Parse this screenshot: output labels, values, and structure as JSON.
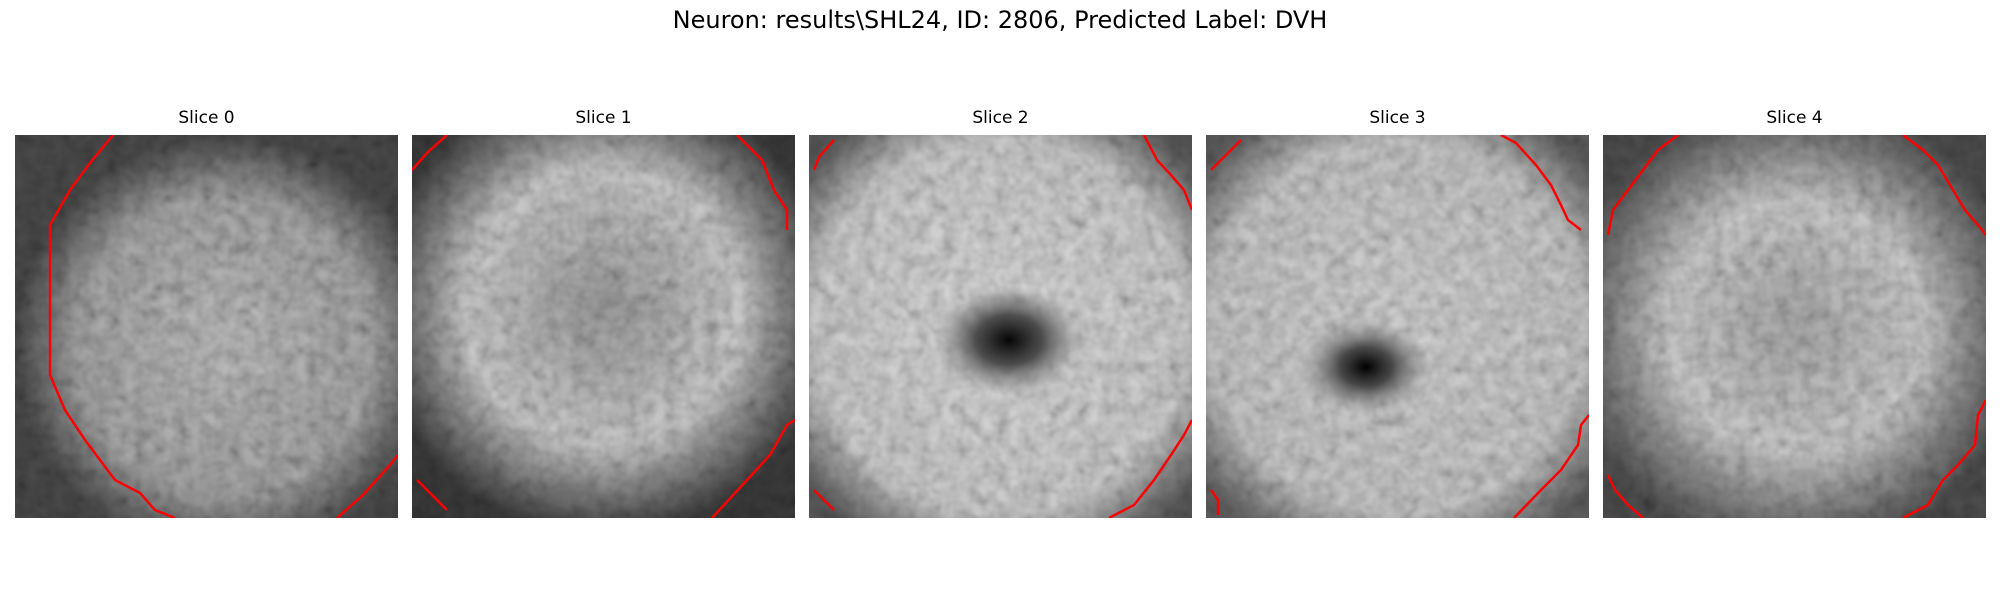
{
  "figure": {
    "title": "Neuron: results\\SHL24, ID: 2806, Predicted Label: DVH"
  },
  "panels": [
    {
      "title": "Slice 0",
      "image_description": "Grayscale noisy micrograph slice with a bright oval cell body; a red contour line runs down the left edge from top to bottom-center, plus a red segment in the bottom-right corner.",
      "contour_color": "#ff0000"
    },
    {
      "title": "Slice 1",
      "image_description": "Grayscale noisy micrograph slice with a bright ring-like region and darker lower border; red contour segments at the top-left, top-right, bottom-left and bottom-right corners.",
      "contour_color": "#ff0000"
    },
    {
      "title": "Slice 2",
      "image_description": "Grayscale noisy micrograph slice with a dark nucleus-like spot near the center; red contour segments at top-left, top-right, bottom-left and bottom-right corners.",
      "contour_color": "#ff0000"
    },
    {
      "title": "Slice 3",
      "image_description": "Grayscale noisy micrograph slice with a dark spot slightly left of center; red contour segments at top-left, top-right, bottom-left and bottom-right corners.",
      "contour_color": "#ff0000"
    },
    {
      "title": "Slice 4",
      "image_description": "Grayscale noisy micrograph slice with a bright oval body and dark border; red contour segments at top-left, top-right, bottom-left and bottom-right corners.",
      "contour_color": "#ff0000"
    }
  ]
}
